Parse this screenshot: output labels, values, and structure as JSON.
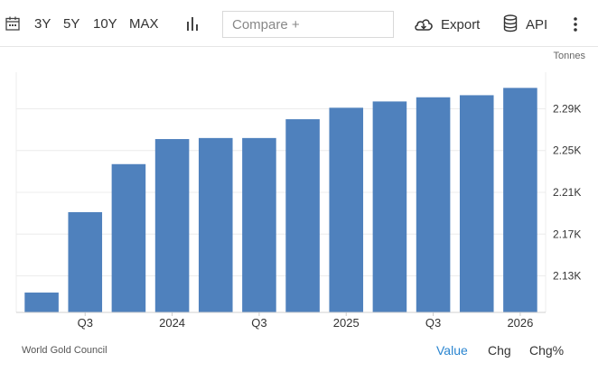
{
  "toolbar": {
    "ranges": [
      "3Y",
      "5Y",
      "10Y",
      "MAX"
    ],
    "compare_placeholder": "Compare +",
    "export_label": "Export",
    "api_label": "API"
  },
  "chart_data": {
    "type": "bar",
    "unit": "Tonnes",
    "colors": {
      "bar": "#4f81bd"
    },
    "x_tick_labels": [
      "Q3",
      "2024",
      "Q3",
      "2025",
      "Q3",
      "2026"
    ],
    "x_tick_bar_index": [
      1,
      3,
      5,
      7,
      9,
      11
    ],
    "values": [
      2114,
      2191,
      2237,
      2261,
      2262,
      2262,
      2280,
      2291,
      2297,
      2301,
      2303,
      2310
    ],
    "yticks": [
      2130,
      2170,
      2210,
      2250,
      2290
    ],
    "ytick_labels": [
      "2.13K",
      "2.17K",
      "2.21K",
      "2.25K",
      "2.29K"
    ],
    "ylim": [
      2095,
      2325
    ],
    "grid": true,
    "y_axis_position": "right"
  },
  "footer": {
    "source": "World Gold Council",
    "tabs": [
      "Value",
      "Chg",
      "Chg%"
    ],
    "active_tab": "Value"
  }
}
